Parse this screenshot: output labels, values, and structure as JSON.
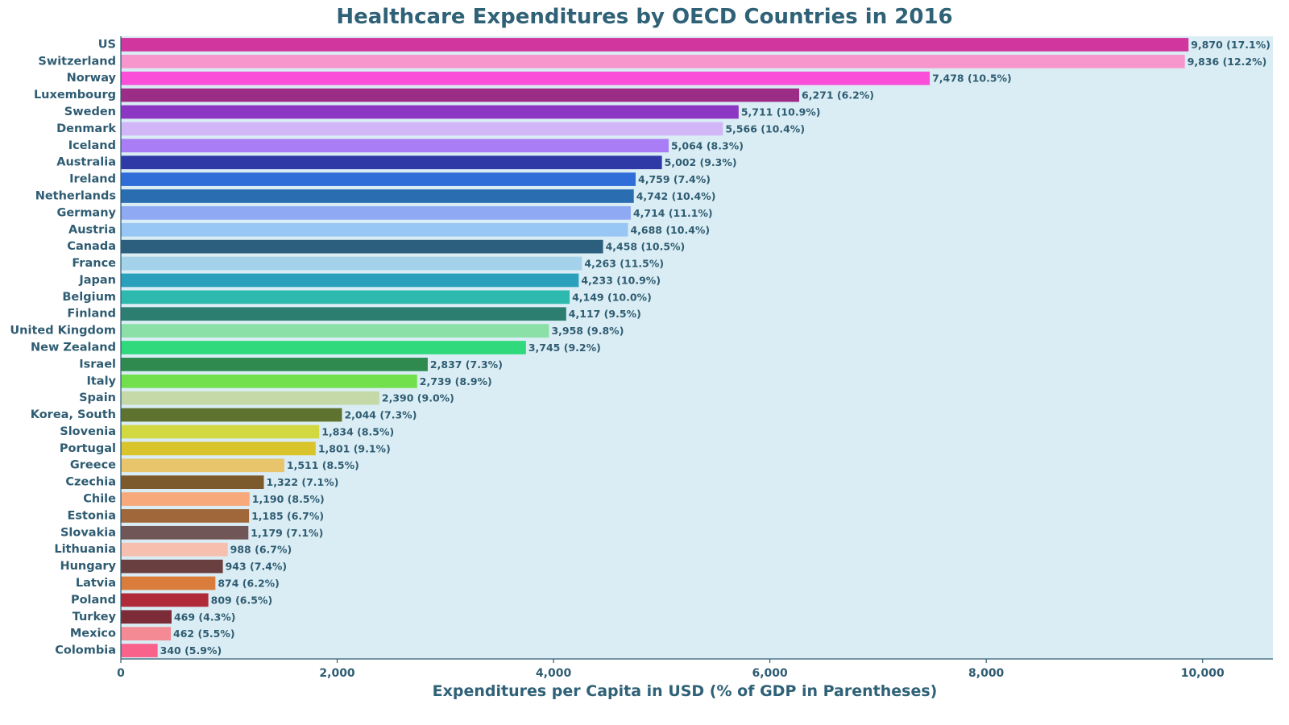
{
  "chart_data": {
    "type": "bar",
    "orientation": "horizontal",
    "title": "Healthcare Expenditures by OECD Countries in 2016",
    "xlabel": "Expenditures per Capita in USD (% of GDP in Parentheses)",
    "ylabel": "",
    "xlim": [
      0,
      10650
    ],
    "xticks": [
      0,
      2000,
      4000,
      6000,
      8000,
      10000
    ],
    "xtick_labels": [
      "0",
      "2,000",
      "4,000",
      "6,000",
      "8,000",
      "10,000"
    ],
    "grid": false,
    "legend": "none",
    "plot_background": "#daedf4",
    "categories": [
      "US",
      "Switzerland",
      "Norway",
      "Luxembourg",
      "Sweden",
      "Denmark",
      "Iceland",
      "Australia",
      "Ireland",
      "Netherlands",
      "Germany",
      "Austria",
      "Canada",
      "France",
      "Japan",
      "Belgium",
      "Finland",
      "United Kingdom",
      "New Zealand",
      "Israel",
      "Italy",
      "Spain",
      "Korea, South",
      "Slovenia",
      "Portugal",
      "Greece",
      "Czechia",
      "Chile",
      "Estonia",
      "Slovakia",
      "Lithuania",
      "Hungary",
      "Latvia",
      "Poland",
      "Turkey",
      "Mexico",
      "Colombia"
    ],
    "values": [
      9870,
      9836,
      7478,
      6271,
      5711,
      5566,
      5064,
      5002,
      4759,
      4742,
      4714,
      4688,
      4458,
      4263,
      4233,
      4149,
      4117,
      3958,
      3745,
      2837,
      2739,
      2390,
      2044,
      1834,
      1801,
      1511,
      1322,
      1190,
      1185,
      1179,
      988,
      943,
      874,
      809,
      469,
      462,
      340
    ],
    "gdp_pct": [
      17.1,
      12.2,
      10.5,
      6.2,
      10.9,
      10.4,
      8.3,
      9.3,
      7.4,
      10.4,
      11.1,
      10.4,
      10.5,
      11.5,
      10.9,
      10.0,
      9.5,
      9.8,
      9.2,
      7.3,
      8.9,
      9.0,
      7.3,
      8.5,
      9.1,
      8.5,
      7.1,
      8.5,
      6.7,
      7.1,
      6.7,
      7.4,
      6.2,
      6.5,
      4.3,
      5.5,
      5.9
    ],
    "labels": [
      "9,870 (17.1%)",
      "9,836 (12.2%)",
      "7,478 (10.5%)",
      "6,271 (6.2%)",
      "5,711 (10.9%)",
      "5,566 (10.4%)",
      "5,064 (8.3%)",
      "5,002 (9.3%)",
      "4,759 (7.4%)",
      "4,742 (10.4%)",
      "4,714 (11.1%)",
      "4,688 (10.4%)",
      "4,458 (10.5%)",
      "4,263 (11.5%)",
      "4,233 (10.9%)",
      "4,149 (10.0%)",
      "4,117 (9.5%)",
      "3,958 (9.8%)",
      "3,745 (9.2%)",
      "2,837 (7.3%)",
      "2,739 (8.9%)",
      "2,390 (9.0%)",
      "2,044 (7.3%)",
      "1,834 (8.5%)",
      "1,801 (9.1%)",
      "1,511 (8.5%)",
      "1,322 (7.1%)",
      "1,190 (8.5%)",
      "1,185 (6.7%)",
      "1,179 (7.1%)",
      "988 (6.7%)",
      "943 (7.4%)",
      "874 (6.2%)",
      "809 (6.5%)",
      "469 (4.3%)",
      "462 (5.5%)",
      "340 (5.9%)"
    ],
    "colors": [
      "#d1359e",
      "#f696cd",
      "#f94fd9",
      "#9b2d86",
      "#8c36c4",
      "#d1b7f7",
      "#a97df5",
      "#2f3aa6",
      "#2f6ed8",
      "#2a6db0",
      "#8fa9f3",
      "#98c6f5",
      "#2c5f7e",
      "#a4d2ea",
      "#2aa0bd",
      "#2db9ad",
      "#2c7f70",
      "#8ae0a6",
      "#2fd97c",
      "#2f8a50",
      "#72e04d",
      "#c4d8a8",
      "#5e7330",
      "#d2d840",
      "#d9c42c",
      "#e8c46a",
      "#7c5a2c",
      "#f7a97c",
      "#a0683a",
      "#705656",
      "#f7bfae",
      "#6a3f3f",
      "#d97c3c",
      "#b02a3a",
      "#7c2c36",
      "#f48a94",
      "#f9628a"
    ]
  }
}
